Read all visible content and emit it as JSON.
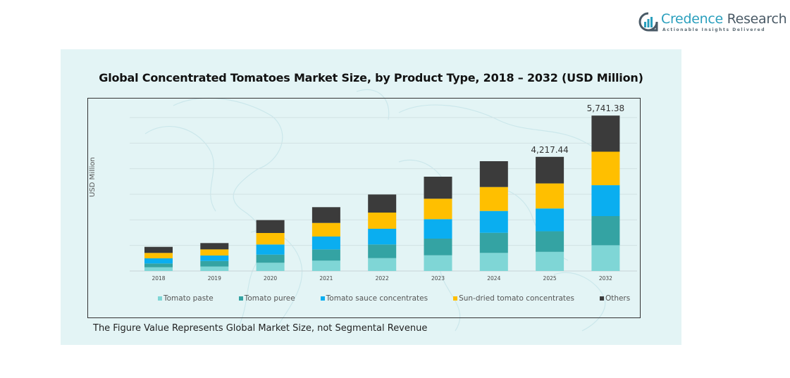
{
  "brand": {
    "name_part1": "Credence",
    "name_part2": " Research",
    "tagline": "Actionable Insights Delivered"
  },
  "colors": {
    "panel_bg": "#e3f4f5",
    "tomato_paste": "#7fd6d6",
    "tomato_puree": "#34a3a3",
    "tomato_sauce_concentrates": "#0aaef0",
    "sun_dried_tomato_concentrates": "#ffbf00",
    "others": "#3b3b3b"
  },
  "note": "The Figure Value Represents Global Market Size, not Segmental Revenue",
  "chart_data": {
    "type": "bar",
    "stacked": true,
    "title": "Global Concentrated  Tomatoes  Market Size, by Product Type, 2018 – 2032 (USD Million)",
    "xlabel": "",
    "ylabel": "USD Million",
    "ylim": [
      0,
      5668
    ],
    "grid": true,
    "legend_position": "bottom",
    "categories": [
      "2018",
      "2019",
      "2020",
      "2021",
      "2022",
      "2023",
      "2024",
      "2025",
      "2032"
    ],
    "series": [
      {
        "name": "Tomato paste",
        "color": "#7fd6d6",
        "values": [
          138,
          164,
          304,
          382,
          476,
          580,
          668,
          707,
          951
        ]
      },
      {
        "name": "Tomato puree",
        "color": "#34a3a3",
        "values": [
          140,
          208,
          302,
          416,
          504,
          616,
          744,
          761,
          1077
        ]
      },
      {
        "name": "Tomato sauce concentrates",
        "color": "#0aaef0",
        "values": [
          190,
          200,
          374,
          476,
          580,
          720,
          806,
          841,
          1142
        ]
      },
      {
        "name": "Sun-dried tomato concentrates",
        "color": "#ffbf00",
        "values": [
          200,
          226,
          424,
          502,
          598,
          754,
          884,
          926,
          1237
        ]
      },
      {
        "name": "Others",
        "color": "#3b3b3b",
        "values": [
          224,
          234,
          476,
          582,
          668,
          814,
          954,
          982,
          1334
        ]
      }
    ],
    "data_labels": [
      {
        "category": "2025",
        "text": "4,217.44"
      },
      {
        "category": "2032",
        "text": "5,741.38"
      }
    ]
  }
}
